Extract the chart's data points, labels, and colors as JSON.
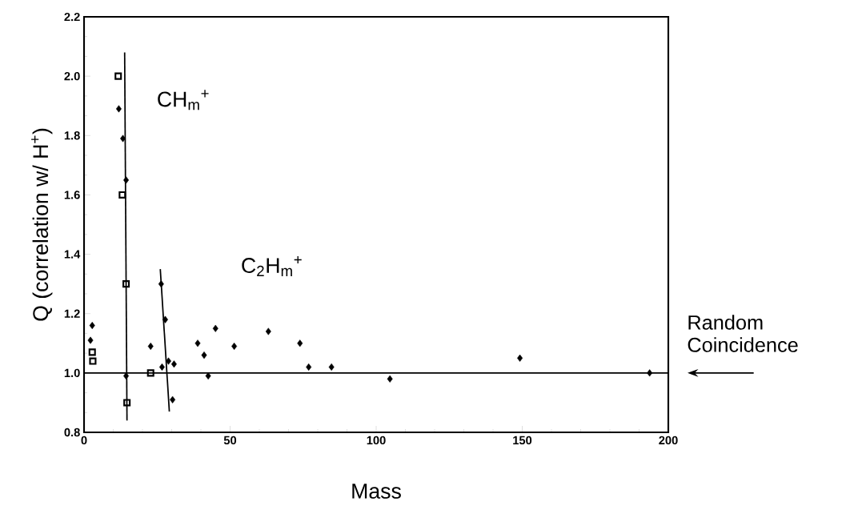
{
  "chart_data": {
    "type": "scatter",
    "xlabel": "Mass",
    "ylabel": "Q (correlation w/ H$^{+}$)",
    "xlim": [
      0,
      200
    ],
    "xticks": [
      0,
      50,
      100,
      150,
      200
    ],
    "ylim": [
      0.8,
      2.2
    ],
    "yticks": [
      0.8,
      {
        "value": 1.0,
        "label": "1.0"
      },
      1.2,
      1.4,
      1.6,
      1.8,
      {
        "value": 2.0,
        "label": "2.0"
      },
      2.2
    ],
    "series": [
      {
        "marker": "square",
        "color": "#000000",
        "x": [
          2.8,
          3.0,
          11.7,
          13.1,
          14.4,
          14.7,
          22.8
        ],
        "values": [
          1.07,
          1.04,
          2.0,
          1.6,
          1.3,
          0.9,
          1.0
        ]
      },
      {
        "marker": "diamond",
        "color": "#000000",
        "x": [
          2.8,
          2.2,
          11.9,
          13.3,
          14.4,
          14.4,
          22.8,
          26.4,
          27.8,
          26.7,
          28.9,
          30.8,
          30.3,
          38.9,
          41.1,
          42.5,
          45.0,
          51.4,
          63.1,
          73.9,
          76.9,
          84.7,
          104.7,
          149.2,
          193.6
        ],
        "values": [
          1.16,
          1.11,
          1.89,
          1.79,
          1.65,
          0.99,
          1.09,
          1.3,
          1.18,
          1.02,
          1.04,
          1.03,
          0.91,
          1.1,
          1.06,
          0.99,
          1.15,
          1.09,
          1.14,
          1.1,
          1.02,
          1.02,
          0.98,
          1.05,
          1.0
        ]
      },
      {
        "type": "line",
        "marker": "none",
        "color": "#000000",
        "x": [
          13.9,
          14.7
        ],
        "values": [
          2.08,
          0.84
        ]
      },
      {
        "type": "line",
        "marker": "none",
        "color": "#000000",
        "x": [
          26.1,
          29.2
        ],
        "values": [
          1.35,
          0.87
        ]
      }
    ],
    "ref_lines": [
      {
        "axis": "y",
        "value": 1.0,
        "label": "Random Coincidence",
        "color": "#000000"
      }
    ],
    "annotations": [
      "CH$_{m}$$^{+}$",
      "C$_{2}$H$_{m}$$^{+}$"
    ]
  }
}
